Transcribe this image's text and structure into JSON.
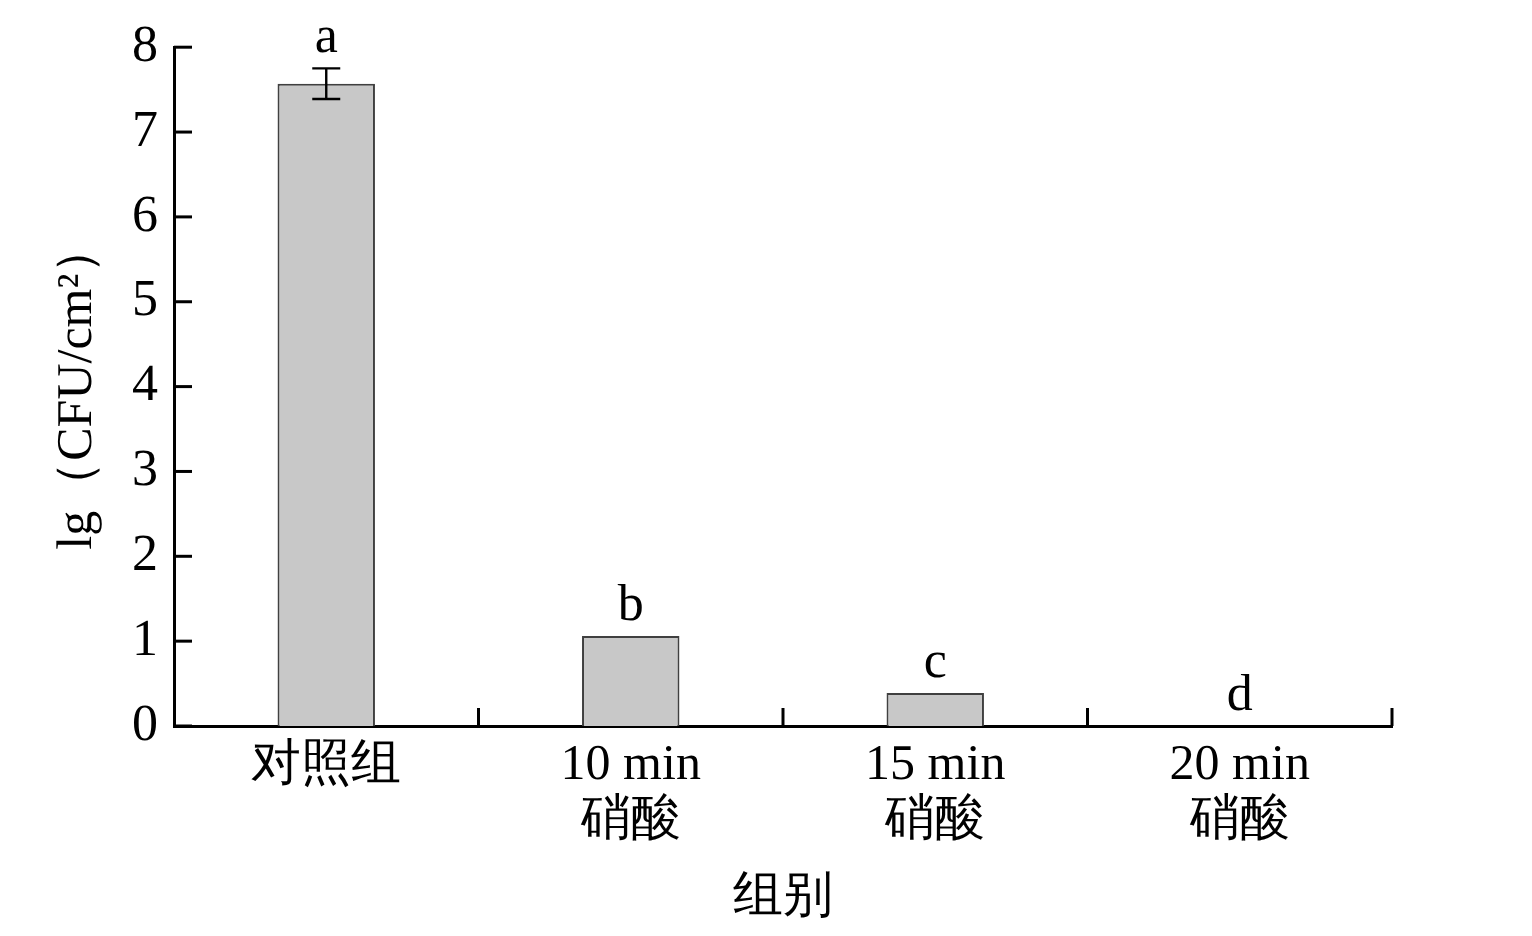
{
  "chart_data": {
    "type": "bar",
    "xlabel": "组别",
    "ylabel": "lg（CFU/cm²）",
    "categories": [
      "对照组",
      "10 min\n硝酸",
      "15 min\n硝酸",
      "20 min\n硝酸"
    ],
    "values": [
      7.57,
      1.06,
      0.39,
      0
    ],
    "errors": [
      0.18,
      null,
      null,
      null
    ],
    "color": "#c8c8c8",
    "ylim": [
      0,
      8
    ],
    "yticks": [
      0,
      1,
      2,
      3,
      4,
      5,
      6,
      7,
      8
    ],
    "grid": false,
    "legend": false,
    "annotations": [
      {
        "text": "a",
        "x": "对照组",
        "y": 7.75
      },
      {
        "text": "b",
        "x": "10 min\n硝酸",
        "y": 1.06
      },
      {
        "text": "c",
        "x": "15 min\n硝酸",
        "y": 0.39
      },
      {
        "text": "d",
        "x": "20 min\n硝酸",
        "y": 0
      }
    ]
  }
}
